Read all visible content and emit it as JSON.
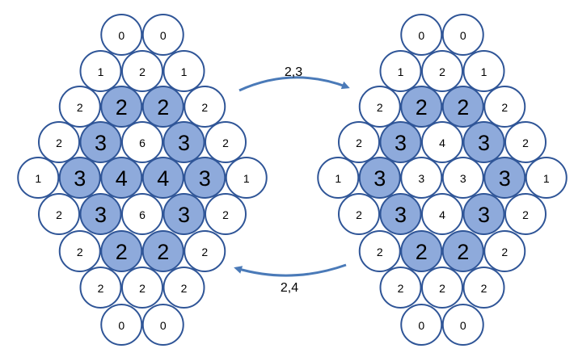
{
  "arrows": {
    "top_label": "2,3",
    "bottom_label": "2,4"
  },
  "left_diagram": {
    "rows": [
      [
        {
          "v": "0",
          "blue": false
        },
        {
          "v": "0",
          "blue": false
        }
      ],
      [
        {
          "v": "1",
          "blue": false
        },
        {
          "v": "2",
          "blue": false
        },
        {
          "v": "1",
          "blue": false
        }
      ],
      [
        {
          "v": "2",
          "blue": false
        },
        {
          "v": "2",
          "blue": true
        },
        {
          "v": "2",
          "blue": true
        },
        {
          "v": "2",
          "blue": false
        }
      ],
      [
        {
          "v": "2",
          "blue": false
        },
        {
          "v": "3",
          "blue": true
        },
        {
          "v": "6",
          "blue": false
        },
        {
          "v": "3",
          "blue": true
        },
        {
          "v": "2",
          "blue": false
        }
      ],
      [
        {
          "v": "1",
          "blue": false
        },
        {
          "v": "3",
          "blue": true
        },
        {
          "v": "4",
          "blue": true
        },
        {
          "v": "4",
          "blue": true
        },
        {
          "v": "3",
          "blue": true
        },
        {
          "v": "1",
          "blue": false
        }
      ],
      [
        {
          "v": "2",
          "blue": false
        },
        {
          "v": "3",
          "blue": true
        },
        {
          "v": "6",
          "blue": false
        },
        {
          "v": "3",
          "blue": true
        },
        {
          "v": "2",
          "blue": false
        }
      ],
      [
        {
          "v": "2",
          "blue": false
        },
        {
          "v": "2",
          "blue": true
        },
        {
          "v": "2",
          "blue": true
        },
        {
          "v": "2",
          "blue": false
        }
      ],
      [
        {
          "v": "2",
          "blue": false
        },
        {
          "v": "2",
          "blue": false
        },
        {
          "v": "2",
          "blue": false
        }
      ],
      [
        {
          "v": "0",
          "blue": false
        },
        {
          "v": "0",
          "blue": false
        }
      ]
    ]
  },
  "right_diagram": {
    "rows": [
      [
        {
          "v": "0",
          "blue": false
        },
        {
          "v": "0",
          "blue": false
        }
      ],
      [
        {
          "v": "1",
          "blue": false
        },
        {
          "v": "2",
          "blue": false
        },
        {
          "v": "1",
          "blue": false
        }
      ],
      [
        {
          "v": "2",
          "blue": false
        },
        {
          "v": "2",
          "blue": true
        },
        {
          "v": "2",
          "blue": true
        },
        {
          "v": "2",
          "blue": false
        }
      ],
      [
        {
          "v": "2",
          "blue": false
        },
        {
          "v": "3",
          "blue": true
        },
        {
          "v": "4",
          "blue": false
        },
        {
          "v": "3",
          "blue": true
        },
        {
          "v": "2",
          "blue": false
        }
      ],
      [
        {
          "v": "1",
          "blue": false
        },
        {
          "v": "3",
          "blue": true
        },
        {
          "v": "3",
          "blue": false
        },
        {
          "v": "3",
          "blue": false
        },
        {
          "v": "3",
          "blue": true
        },
        {
          "v": "1",
          "blue": false
        }
      ],
      [
        {
          "v": "2",
          "blue": false
        },
        {
          "v": "3",
          "blue": true
        },
        {
          "v": "4",
          "blue": false
        },
        {
          "v": "3",
          "blue": true
        },
        {
          "v": "2",
          "blue": false
        }
      ],
      [
        {
          "v": "2",
          "blue": false
        },
        {
          "v": "2",
          "blue": true
        },
        {
          "v": "2",
          "blue": true
        },
        {
          "v": "2",
          "blue": false
        }
      ],
      [
        {
          "v": "2",
          "blue": false
        },
        {
          "v": "2",
          "blue": false
        },
        {
          "v": "2",
          "blue": false
        }
      ],
      [
        {
          "v": "0",
          "blue": false
        },
        {
          "v": "0",
          "blue": false
        }
      ]
    ]
  },
  "colors": {
    "blue_fill": "#8eaadb",
    "outline": "#2f5597",
    "arrow": "#4a7ab8"
  }
}
